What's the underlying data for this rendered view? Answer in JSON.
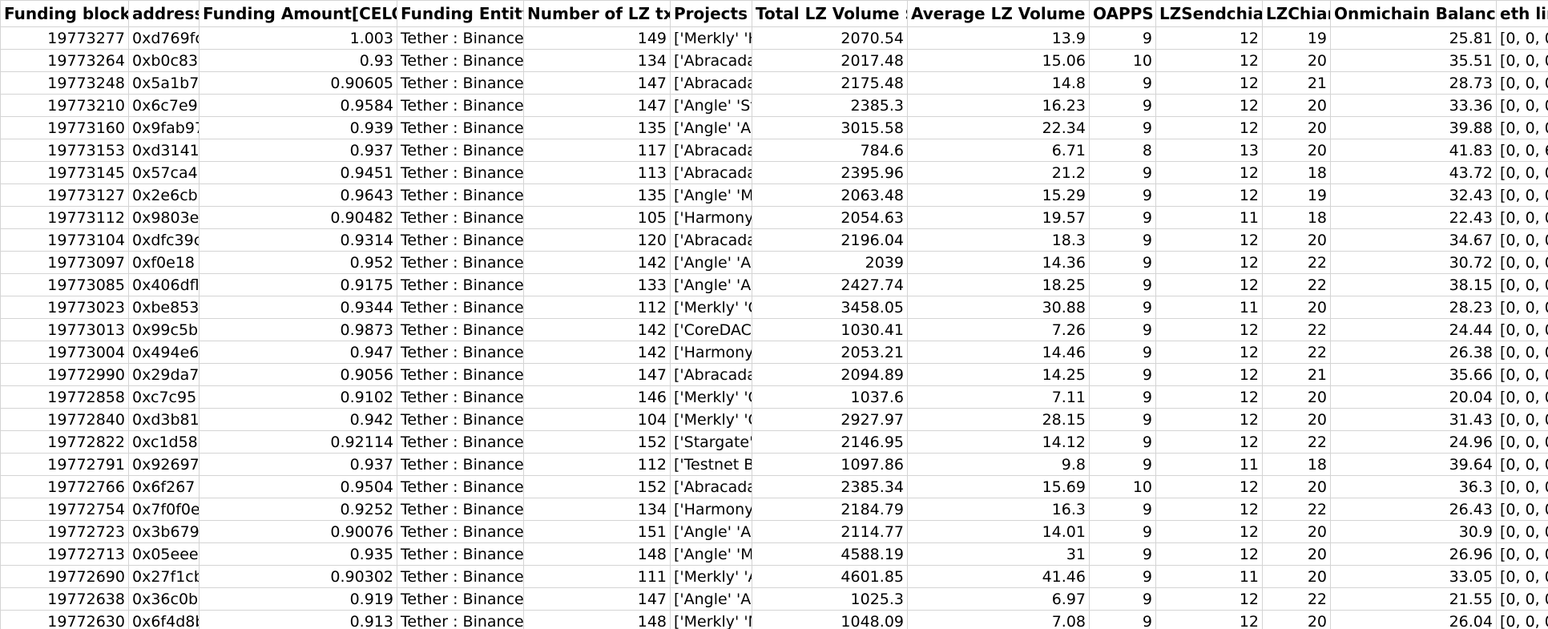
{
  "sheet": {
    "columns": [
      "Funding block",
      "address",
      "Funding Amount[CELO]",
      "Funding Entity",
      "Number of LZ tx",
      "Projects",
      "Total LZ Volume $",
      "Average LZ Volume $",
      "OAPPS",
      "LZSendchian",
      "LZChian",
      "Onmichain Balance$",
      "eth line"
    ],
    "rows": [
      [
        "19773277",
        "0xd769fc",
        "1.003",
        "Tether : Binance",
        "149",
        "['Merkly' 'H",
        "2070.54",
        "13.9",
        "9",
        "12",
        "19",
        "25.81",
        "[0, 0, 0,"
      ],
      [
        "19773264",
        "0xb0c83",
        "0.93",
        "Tether : Binance",
        "134",
        "['Abracada",
        "2017.48",
        "15.06",
        "10",
        "12",
        "20",
        "35.51",
        "[0, 0, 0,"
      ],
      [
        "19773248",
        "0x5a1b7",
        "0.90605",
        "Tether : Binance",
        "147",
        "['Abracada",
        "2175.48",
        "14.8",
        "9",
        "12",
        "21",
        "28.73",
        "[0, 0, 0,"
      ],
      [
        "19773210",
        "0x6c7e9",
        "0.9584",
        "Tether : Binance",
        "147",
        "['Angle' 'St",
        "2385.3",
        "16.23",
        "9",
        "12",
        "20",
        "33.36",
        "[0, 0, 0,"
      ],
      [
        "19773160",
        "0x9fab97",
        "0.939",
        "Tether : Binance",
        "135",
        "['Angle' 'Al",
        "3015.58",
        "22.34",
        "9",
        "12",
        "20",
        "39.88",
        "[0, 0, 0,"
      ],
      [
        "19773153",
        "0xd3141",
        "0.937",
        "Tether : Binance",
        "117",
        "['Abracada",
        "784.6",
        "6.71",
        "8",
        "13",
        "20",
        "41.83",
        "[0, 0, 6."
      ],
      [
        "19773145",
        "0x57ca4",
        "0.9451",
        "Tether : Binance",
        "113",
        "['Abracada",
        "2395.96",
        "21.2",
        "9",
        "12",
        "18",
        "43.72",
        "[0, 0, 0,"
      ],
      [
        "19773127",
        "0x2e6cbl",
        "0.9643",
        "Tether : Binance",
        "135",
        "['Angle' 'M",
        "2063.48",
        "15.29",
        "9",
        "12",
        "19",
        "32.43",
        "[0, 0, 0,"
      ],
      [
        "19773112",
        "0x9803e",
        "0.90482",
        "Tether : Binance",
        "105",
        "['Harmony",
        "2054.63",
        "19.57",
        "9",
        "11",
        "18",
        "22.43",
        "[0, 0, 0,"
      ],
      [
        "19773104",
        "0xdfc39c",
        "0.9314",
        "Tether : Binance",
        "120",
        "['Abracada",
        "2196.04",
        "18.3",
        "9",
        "12",
        "20",
        "34.67",
        "[0, 0, 0,"
      ],
      [
        "19773097",
        "0xf0e18",
        "0.952",
        "Tether : Binance",
        "142",
        "['Angle' 'Al",
        "2039",
        "14.36",
        "9",
        "12",
        "22",
        "30.72",
        "[0, 0, 0,"
      ],
      [
        "19773085",
        "0x406dfl",
        "0.9175",
        "Tether : Binance",
        "133",
        "['Angle' 'Ar",
        "2427.74",
        "18.25",
        "9",
        "12",
        "22",
        "38.15",
        "[0, 0, 0,"
      ],
      [
        "19773023",
        "0xbe853",
        "0.9344",
        "Tether : Binance",
        "112",
        "['Merkly' 'C",
        "3458.05",
        "30.88",
        "9",
        "11",
        "20",
        "28.23",
        "[0, 0, 0,"
      ],
      [
        "19773013",
        "0x99c5b",
        "0.9873",
        "Tether : Binance",
        "142",
        "['CoreDAC",
        "1030.41",
        "7.26",
        "9",
        "12",
        "22",
        "24.44",
        "[0, 0, 0,"
      ],
      [
        "19773004",
        "0x494e6",
        "0.947",
        "Tether : Binance",
        "142",
        "['Harmony",
        "2053.21",
        "14.46",
        "9",
        "12",
        "22",
        "26.38",
        "[0, 0, 0,"
      ],
      [
        "19772990",
        "0x29da7",
        "0.9056",
        "Tether : Binance",
        "147",
        "['Abracada",
        "2094.89",
        "14.25",
        "9",
        "12",
        "21",
        "35.66",
        "[0, 0, 0,"
      ],
      [
        "19772858",
        "0xc7c95",
        "0.9102",
        "Tether : Binance",
        "146",
        "['Merkly' 'C",
        "1037.6",
        "7.11",
        "9",
        "12",
        "20",
        "20.04",
        "[0, 0, 0,"
      ],
      [
        "19772840",
        "0xd3b81",
        "0.942",
        "Tether : Binance",
        "104",
        "['Merkly' 'C",
        "2927.97",
        "28.15",
        "9",
        "12",
        "20",
        "31.43",
        "[0, 0, 0,"
      ],
      [
        "19772822",
        "0xc1d58",
        "0.92114",
        "Tether : Binance",
        "152",
        "['Stargate'",
        "2146.95",
        "14.12",
        "9",
        "12",
        "22",
        "24.96",
        "[0, 0, 0,"
      ],
      [
        "19772791",
        "0x92697",
        "0.937",
        "Tether : Binance",
        "112",
        "['Testnet Br",
        "1097.86",
        "9.8",
        "9",
        "11",
        "18",
        "39.64",
        "[0, 0, 0,"
      ],
      [
        "19772766",
        "0x6f267",
        "0.9504",
        "Tether : Binance",
        "152",
        "['Abracada",
        "2385.34",
        "15.69",
        "10",
        "12",
        "20",
        "36.3",
        "[0, 0, 0,"
      ],
      [
        "19772754",
        "0x7f0f0e",
        "0.9252",
        "Tether : Binance",
        "134",
        "['Harmony",
        "2184.79",
        "16.3",
        "9",
        "12",
        "22",
        "26.43",
        "[0, 0, 0,"
      ],
      [
        "19772723",
        "0x3b679",
        "0.90076",
        "Tether : Binance",
        "151",
        "['Angle' 'Al",
        "2114.77",
        "14.01",
        "9",
        "12",
        "20",
        "30.9",
        "[0, 0, 0,"
      ],
      [
        "19772713",
        "0x05eee",
        "0.935",
        "Tether : Binance",
        "148",
        "['Angle' 'M",
        "4588.19",
        "31",
        "9",
        "12",
        "20",
        "26.96",
        "[0, 0, 0,"
      ],
      [
        "19772690",
        "0x27f1cb",
        "0.90302",
        "Tether : Binance",
        "111",
        "['Merkly' 'A",
        "4601.85",
        "41.46",
        "9",
        "11",
        "20",
        "33.05",
        "[0, 0, 0,"
      ],
      [
        "19772638",
        "0x36c0b",
        "0.919",
        "Tether : Binance",
        "147",
        "['Angle' 'Al",
        "1025.3",
        "6.97",
        "9",
        "12",
        "22",
        "21.55",
        "[0, 0, 0,"
      ],
      [
        "19772630",
        "0x6f4d8b",
        "0.913",
        "Tether : Binance",
        "148",
        "['Merkly' 'M",
        "1048.09",
        "7.08",
        "9",
        "12",
        "20",
        "26.04",
        "[0, 0, 0,"
      ]
    ]
  }
}
